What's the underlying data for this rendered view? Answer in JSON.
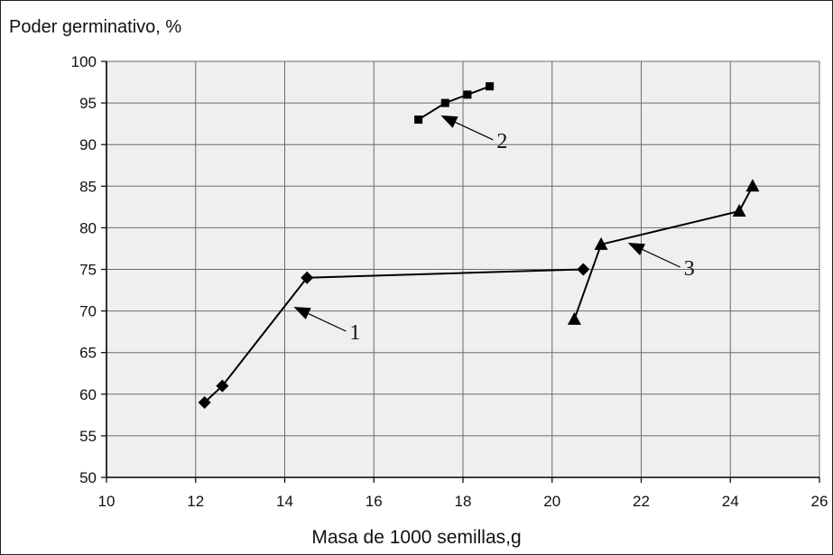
{
  "chart_data": {
    "type": "line",
    "ylabel": "Poder germinativo, %",
    "xlabel": "Masa de 1000 semillas,g",
    "xlim": [
      10,
      26
    ],
    "ylim": [
      50,
      100
    ],
    "x_ticks": [
      "10",
      "12",
      "14",
      "16",
      "18",
      "20",
      "22",
      "24",
      "26"
    ],
    "y_ticks": [
      "50",
      "55",
      "60",
      "65",
      "70",
      "75",
      "80",
      "85",
      "90",
      "95",
      "100"
    ],
    "grid": true,
    "series": [
      {
        "name": "1",
        "marker": "diamond",
        "x": [
          12.2,
          12.6,
          14.5,
          20.7
        ],
        "y": [
          59,
          61,
          74,
          75
        ]
      },
      {
        "name": "2",
        "marker": "square",
        "x": [
          17.0,
          17.6,
          18.1,
          18.6
        ],
        "y": [
          93,
          95,
          96,
          97
        ]
      },
      {
        "name": "3",
        "marker": "triangle",
        "x": [
          20.5,
          21.1,
          24.2,
          24.5
        ],
        "y": [
          69,
          78,
          82,
          85
        ]
      }
    ],
    "annotations": [
      {
        "label": "1",
        "series": "1",
        "point_x": 14.2,
        "point_y": 70.5
      },
      {
        "label": "2",
        "series": "2",
        "point_x": 17.5,
        "point_y": 93.5
      },
      {
        "label": "3",
        "series": "3",
        "point_x": 21.7,
        "point_y": 78.2
      }
    ],
    "colors": {
      "line": "#000000",
      "grid": "#6b6b6b",
      "plot_background": "#efefef"
    }
  }
}
